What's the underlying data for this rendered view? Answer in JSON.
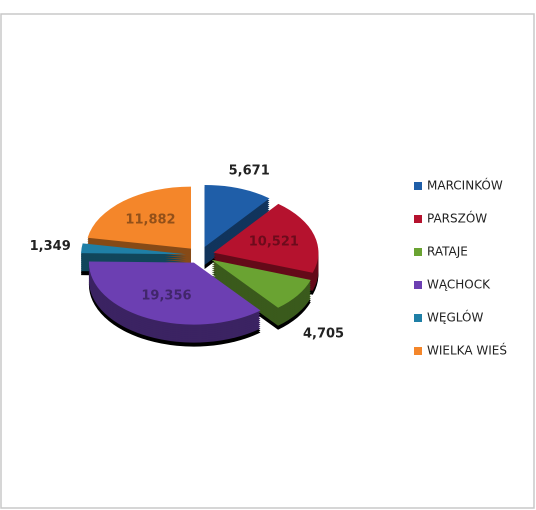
{
  "chart_data": {
    "type": "pie",
    "categories": [
      "MARCINKÓW",
      "PARSZÓW",
      "RATAJE",
      "WĄCHOCK",
      "WĘGLÓW",
      "WIELKA WIEŚ"
    ],
    "values": [
      5671,
      10521,
      4705,
      19356,
      1349,
      11882
    ],
    "value_labels": [
      "5,671",
      "10,521",
      "4,705",
      "19,356",
      "1,349",
      "11,882"
    ],
    "colors": [
      "#1f5ea8",
      "#b5122e",
      "#6aa332",
      "#6c3fb2",
      "#1f7fa6",
      "#f4862a"
    ],
    "legend": "right"
  }
}
